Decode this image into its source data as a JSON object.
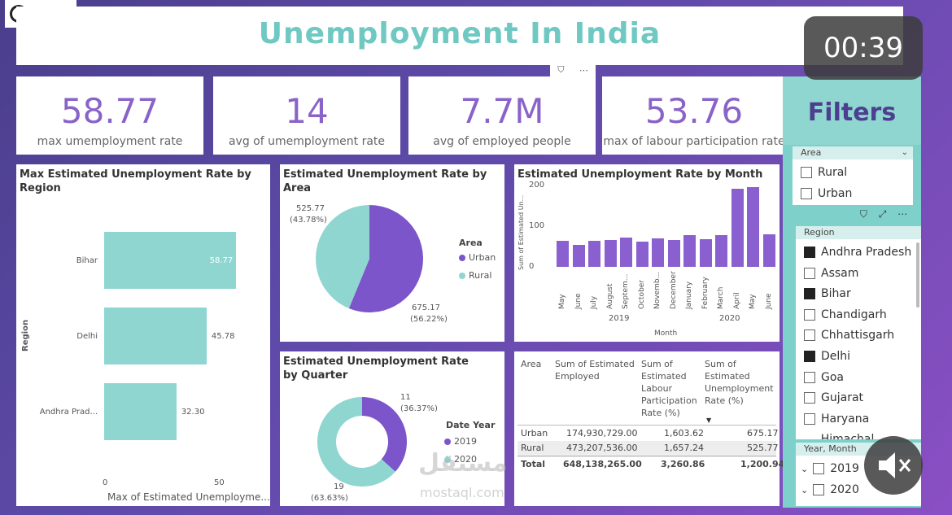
{
  "title": "Unemployment In India",
  "timer": "00:39",
  "watermark": {
    "arabic": "مستقل",
    "latin": "mostaql.com"
  },
  "kpis": [
    {
      "value": "58.77",
      "label": "max umemployment rate"
    },
    {
      "value": "14",
      "label": "avg of umemployment rate"
    },
    {
      "value": "7.7M",
      "label": "avg of employed people"
    },
    {
      "value": "53.76",
      "label": "max of labour participation rate"
    }
  ],
  "bar_panel": {
    "title": "Max Estimated Unemployment Rate by Region",
    "ylabel": "Region",
    "xlabel": "Max of Estimated Unemployme...",
    "ticks": [
      "0",
      "50"
    ],
    "rows": [
      {
        "label": "Bihar",
        "value_label": "58.77"
      },
      {
        "label": "Delhi",
        "value_label": "45.78"
      },
      {
        "label": "Andhra Prad...",
        "value_label": "32.30"
      }
    ]
  },
  "area_panel": {
    "title": "Estimated Unemployment Rate by Area",
    "legend_title": "Area",
    "legend": [
      "Urban",
      "Rural"
    ],
    "label_rural": "525.77",
    "label_rural_pct": "(43.78%)",
    "label_urban": "675.17",
    "label_urban_pct": "(56.22%)"
  },
  "month_panel": {
    "title": "Estimated Unemployment Rate by Month",
    "ylabel": "Sum of Estimated Un...",
    "xlabel": "Month",
    "yticks": [
      "200",
      "100",
      "0"
    ],
    "months": [
      "May",
      "June",
      "July",
      "August",
      "Septem...",
      "October",
      "Novemb...",
      "December",
      "January",
      "February",
      "March",
      "April",
      "May",
      "June"
    ],
    "years": [
      "2019",
      "2020"
    ]
  },
  "quarter_panel": {
    "title": "Estimated Unemployment Rate by Quarter",
    "legend_title": "Date Year",
    "legend": [
      "2019",
      "2020"
    ],
    "label_2019": "11",
    "label_2019_pct": "(36.37%)",
    "label_2020": "19",
    "label_2020_pct": "(63.63%)"
  },
  "table": {
    "headers": [
      "Area",
      "Sum of Estimated Employed",
      "Sum of Estimated Labour Participation Rate (%)",
      "Sum of Estimated Unemployment Rate (%)"
    ],
    "rows": [
      [
        "Urban",
        "174,930,729.00",
        "1,603.62",
        "675.17"
      ],
      [
        "Rural",
        "473,207,536.00",
        "1,657.24",
        "525.77"
      ]
    ],
    "total": [
      "Total",
      "648,138,265.00",
      "3,260.86",
      "1,200.94"
    ]
  },
  "filters": {
    "title": "Filters",
    "area": {
      "label": "Area",
      "items": [
        "Rural",
        "Urban"
      ]
    },
    "region": {
      "label": "Region",
      "items": [
        {
          "name": "Andhra Pradesh",
          "checked": true
        },
        {
          "name": "Assam",
          "checked": false
        },
        {
          "name": "Bihar",
          "checked": true
        },
        {
          "name": "Chandigarh",
          "checked": false
        },
        {
          "name": "Chhattisgarh",
          "checked": false
        },
        {
          "name": "Delhi",
          "checked": true
        },
        {
          "name": "Goa",
          "checked": false
        },
        {
          "name": "Gujarat",
          "checked": false
        },
        {
          "name": "Haryana",
          "checked": false
        },
        {
          "name": "Himachal Pradesh",
          "checked": false
        }
      ]
    },
    "year_month": {
      "label": "Year, Month",
      "items": [
        "2019",
        "2020"
      ]
    }
  },
  "chart_data": [
    {
      "type": "bar",
      "orientation": "horizontal",
      "title": "Max Estimated Unemployment Rate by Region",
      "categories": [
        "Bihar",
        "Delhi",
        "Andhra Prad..."
      ],
      "values": [
        58.77,
        45.78,
        32.3
      ],
      "xlabel": "Max of Estimated Unemployme...",
      "ylabel": "Region",
      "xlim": [
        0,
        60
      ]
    },
    {
      "type": "pie",
      "title": "Estimated Unemployment Rate by Area",
      "categories": [
        "Urban",
        "Rural"
      ],
      "values": [
        675.17,
        525.77
      ],
      "colors": [
        "#7b55c9",
        "#8fd6d1"
      ]
    },
    {
      "type": "bar",
      "title": "Estimated Unemployment Rate by Month",
      "categories": [
        "May",
        "June",
        "July",
        "August",
        "Septem...",
        "October",
        "Novemb...",
        "December",
        "January",
        "February",
        "March",
        "April",
        "May",
        "June"
      ],
      "values": [
        65,
        55,
        65,
        67,
        73,
        62,
        70,
        66,
        78,
        68,
        78,
        192,
        196,
        80
      ],
      "xlabel": "Month",
      "ylabel": "Sum of Estimated Un...",
      "ylim": [
        0,
        220
      ],
      "color": "#8a5fd0"
    },
    {
      "type": "pie",
      "donut": true,
      "title": "Estimated Unemployment Rate by Quarter",
      "categories": [
        "2019",
        "2020"
      ],
      "values": [
        11,
        19
      ],
      "colors": [
        "#7b55c9",
        "#8fd6d1"
      ]
    }
  ]
}
